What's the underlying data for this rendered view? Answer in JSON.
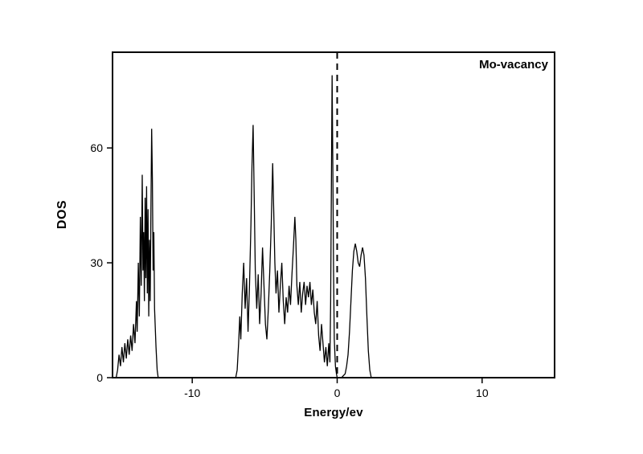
{
  "figure": {
    "series_label": "Mo-vacancy"
  },
  "chart_data": {
    "type": "line",
    "title": "Mo-vacancy",
    "xlabel": "Energy/ev",
    "ylabel": "DOS",
    "xlim": [
      -15.5,
      15
    ],
    "ylim": [
      0,
      85
    ],
    "xticks": [
      -10,
      0,
      10
    ],
    "yticks": [
      0,
      30,
      60
    ],
    "grid": false,
    "legend": "none",
    "line_color": "#000000",
    "background_color": "#ffffff",
    "reference_line": {
      "x": 0,
      "style": "dashed",
      "color": "#000000"
    },
    "series": [
      {
        "name": "Mo-vacancy DOS",
        "points": [
          [
            -15.5,
            0
          ],
          [
            -15.25,
            0
          ],
          [
            -15.15,
            2
          ],
          [
            -15.05,
            6
          ],
          [
            -14.95,
            3
          ],
          [
            -14.85,
            8
          ],
          [
            -14.75,
            4
          ],
          [
            -14.65,
            9
          ],
          [
            -14.55,
            5
          ],
          [
            -14.45,
            10
          ],
          [
            -14.35,
            6
          ],
          [
            -14.25,
            11
          ],
          [
            -14.15,
            7
          ],
          [
            -14.05,
            14
          ],
          [
            -13.95,
            9
          ],
          [
            -13.85,
            20
          ],
          [
            -13.8,
            12
          ],
          [
            -13.72,
            30
          ],
          [
            -13.65,
            16
          ],
          [
            -13.58,
            42
          ],
          [
            -13.52,
            24
          ],
          [
            -13.45,
            53
          ],
          [
            -13.4,
            28
          ],
          [
            -13.35,
            38
          ],
          [
            -13.3,
            20
          ],
          [
            -13.25,
            47
          ],
          [
            -13.2,
            26
          ],
          [
            -13.15,
            50
          ],
          [
            -13.1,
            22
          ],
          [
            -13.05,
            44
          ],
          [
            -13.0,
            16
          ],
          [
            -12.95,
            36
          ],
          [
            -12.9,
            20
          ],
          [
            -12.85,
            44
          ],
          [
            -12.8,
            65
          ],
          [
            -12.75,
            52
          ],
          [
            -12.7,
            28
          ],
          [
            -12.65,
            38
          ],
          [
            -12.6,
            18
          ],
          [
            -12.5,
            8
          ],
          [
            -12.42,
            2
          ],
          [
            -12.35,
            0
          ],
          [
            -12.0,
            0
          ],
          [
            -7.0,
            0
          ],
          [
            -6.9,
            2
          ],
          [
            -6.8,
            9
          ],
          [
            -6.72,
            16
          ],
          [
            -6.65,
            10
          ],
          [
            -6.55,
            22
          ],
          [
            -6.45,
            30
          ],
          [
            -6.35,
            18
          ],
          [
            -6.25,
            26
          ],
          [
            -6.15,
            12
          ],
          [
            -6.05,
            24
          ],
          [
            -5.95,
            40
          ],
          [
            -5.88,
            55
          ],
          [
            -5.8,
            66
          ],
          [
            -5.72,
            46
          ],
          [
            -5.65,
            28
          ],
          [
            -5.55,
            18
          ],
          [
            -5.45,
            27
          ],
          [
            -5.35,
            14
          ],
          [
            -5.25,
            22
          ],
          [
            -5.15,
            34
          ],
          [
            -5.05,
            24
          ],
          [
            -4.95,
            14
          ],
          [
            -4.85,
            10
          ],
          [
            -4.75,
            18
          ],
          [
            -4.65,
            28
          ],
          [
            -4.55,
            40
          ],
          [
            -4.45,
            56
          ],
          [
            -4.38,
            44
          ],
          [
            -4.3,
            30
          ],
          [
            -4.22,
            22
          ],
          [
            -4.12,
            28
          ],
          [
            -4.02,
            17
          ],
          [
            -3.92,
            24
          ],
          [
            -3.82,
            30
          ],
          [
            -3.72,
            20
          ],
          [
            -3.62,
            14
          ],
          [
            -3.52,
            21
          ],
          [
            -3.42,
            17
          ],
          [
            -3.32,
            24
          ],
          [
            -3.22,
            19
          ],
          [
            -3.12,
            27
          ],
          [
            -3.02,
            34
          ],
          [
            -2.92,
            42
          ],
          [
            -2.85,
            36
          ],
          [
            -2.78,
            24
          ],
          [
            -2.68,
            19
          ],
          [
            -2.58,
            25
          ],
          [
            -2.48,
            17
          ],
          [
            -2.38,
            22
          ],
          [
            -2.28,
            25
          ],
          [
            -2.18,
            19
          ],
          [
            -2.08,
            24
          ],
          [
            -1.98,
            21
          ],
          [
            -1.88,
            25
          ],
          [
            -1.78,
            19
          ],
          [
            -1.68,
            23
          ],
          [
            -1.58,
            17
          ],
          [
            -1.48,
            14
          ],
          [
            -1.38,
            20
          ],
          [
            -1.28,
            11
          ],
          [
            -1.18,
            7
          ],
          [
            -1.08,
            14
          ],
          [
            -0.98,
            9
          ],
          [
            -0.88,
            4
          ],
          [
            -0.78,
            8
          ],
          [
            -0.68,
            3
          ],
          [
            -0.58,
            9
          ],
          [
            -0.5,
            4
          ],
          [
            -0.45,
            20
          ],
          [
            -0.4,
            50
          ],
          [
            -0.35,
            79
          ],
          [
            -0.3,
            55
          ],
          [
            -0.25,
            28
          ],
          [
            -0.2,
            10
          ],
          [
            -0.12,
            3
          ],
          [
            -0.05,
            1
          ],
          [
            0.0,
            0
          ],
          [
            0.3,
            0
          ],
          [
            0.55,
            1
          ],
          [
            0.65,
            3
          ],
          [
            0.75,
            6
          ],
          [
            0.85,
            12
          ],
          [
            0.95,
            20
          ],
          [
            1.05,
            28
          ],
          [
            1.15,
            33
          ],
          [
            1.25,
            35
          ],
          [
            1.35,
            33
          ],
          [
            1.45,
            30
          ],
          [
            1.55,
            29
          ],
          [
            1.65,
            32
          ],
          [
            1.75,
            34
          ],
          [
            1.85,
            32
          ],
          [
            1.95,
            26
          ],
          [
            2.05,
            16
          ],
          [
            2.15,
            7
          ],
          [
            2.25,
            2
          ],
          [
            2.35,
            0
          ],
          [
            3.0,
            0
          ],
          [
            15.0,
            0
          ]
        ]
      }
    ]
  }
}
